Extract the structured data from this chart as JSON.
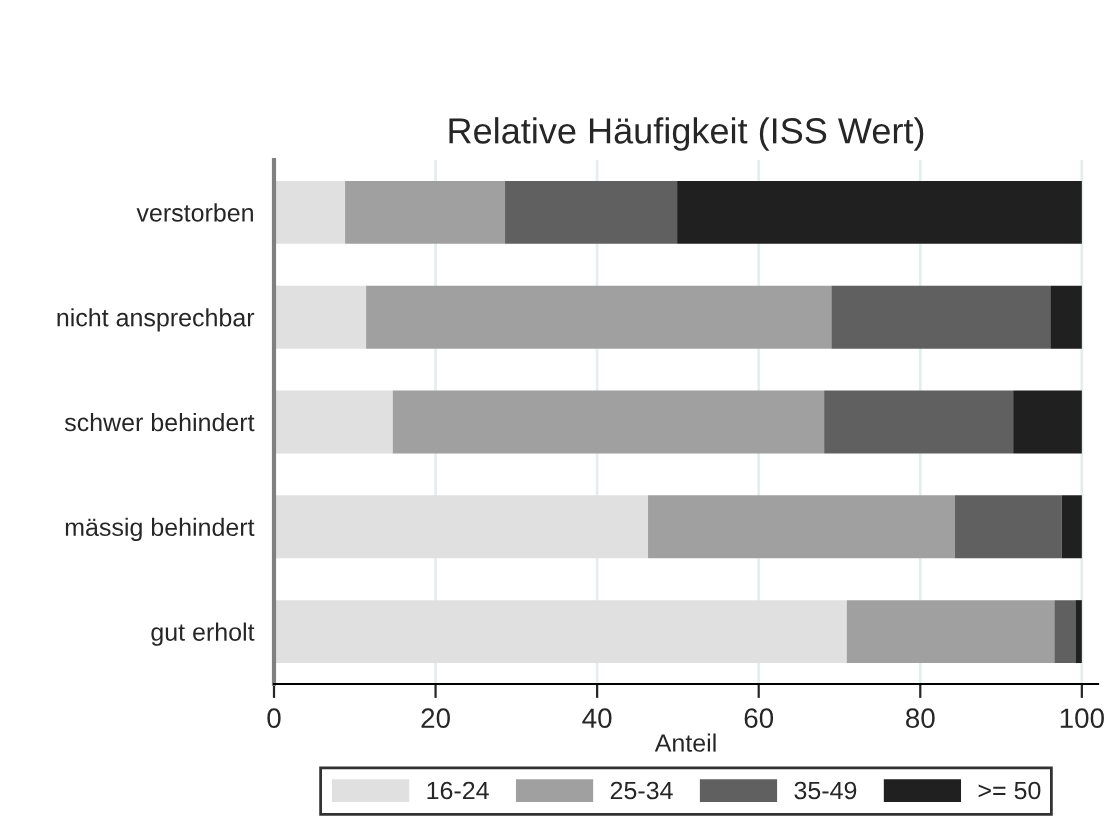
{
  "chart_data": {
    "type": "bar",
    "orientation": "horizontal",
    "stacked": true,
    "title": "Relative Häufigkeit (ISS Wert)",
    "xlabel": "Anteil",
    "categories": [
      "verstorben",
      "nicht ansprechbar",
      "schwer behindert",
      "mässig behindert",
      "gut erholt"
    ],
    "series": [
      {
        "name": "16-24",
        "color": "#e0e0e0",
        "values": [
          8.8,
          11.4,
          14.7,
          46.3,
          70.9
        ]
      },
      {
        "name": "25-34",
        "color": "#a0a0a0",
        "values": [
          19.8,
          57.6,
          53.4,
          38.0,
          25.7
        ]
      },
      {
        "name": "35-49",
        "color": "#606060",
        "values": [
          21.3,
          27.1,
          23.4,
          13.2,
          2.6
        ]
      },
      {
        "name": ">= 50",
        "color": "#202020",
        "values": [
          50.1,
          3.9,
          8.5,
          2.5,
          0.8
        ]
      }
    ],
    "xlim": [
      0,
      102
    ],
    "xticks": [
      0,
      20,
      40,
      60,
      80,
      100
    ],
    "grid": "x",
    "legend": "bottom"
  }
}
